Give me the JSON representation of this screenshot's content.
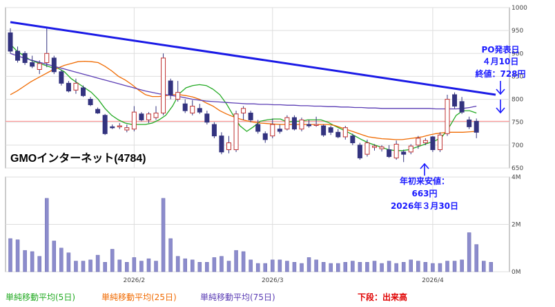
{
  "chart_data": {
    "type": "candlestick",
    "title": "GMOインターネット(4784)",
    "x_ticks": [
      "2026/2",
      "2026/3",
      "2026/4"
    ],
    "price_axis": {
      "ticks": [
        "1000",
        "950",
        "900",
        "850",
        "800",
        "750",
        "700",
        "650"
      ],
      "ylim": [
        650,
        1000
      ]
    },
    "volume_axis": {
      "ticks": [
        "4M",
        "2M",
        "0M"
      ],
      "ylim": [
        0,
        4
      ]
    },
    "series": [
      {
        "name": "単純移動平均(5日)",
        "color": "#22aa22",
        "values": [
          920,
          905,
          895,
          885,
          880,
          875,
          870,
          868,
          860,
          845,
          835,
          825,
          815,
          800,
          780,
          765,
          755,
          748,
          745,
          745,
          745,
          748,
          755,
          765,
          785,
          812,
          825,
          830,
          832,
          830,
          822,
          810,
          790,
          765,
          742,
          730,
          740,
          752,
          755,
          757,
          757,
          750,
          752,
          752,
          755,
          755,
          755,
          750,
          742,
          735,
          728,
          720,
          712,
          705,
          700,
          695,
          690,
          688,
          688,
          690,
          695,
          700,
          705,
          710,
          720,
          740,
          765,
          775,
          775,
          770
        ]
      },
      {
        "name": "単純移動平均(25日)",
        "color": "#f06a00",
        "values": [
          810,
          818,
          828,
          838,
          846,
          854,
          862,
          868,
          874,
          878,
          882,
          883,
          882,
          880,
          872,
          862,
          850,
          842,
          832,
          820,
          810,
          806,
          806,
          808,
          810,
          810,
          808,
          805,
          800,
          792,
          785,
          775,
          768,
          762,
          757,
          753,
          750,
          748,
          747,
          746,
          745,
          745,
          745,
          745,
          745,
          745,
          745,
          745,
          743,
          738,
          733,
          728,
          723,
          718,
          716,
          714,
          713,
          712,
          712,
          714,
          716,
          718,
          722,
          725,
          727,
          728,
          728,
          728,
          729,
          730
        ]
      },
      {
        "name": "単純移動平均(75日)",
        "color": "#5a3cb4",
        "values": [
          900,
          895,
          890,
          886,
          882,
          878,
          874,
          870,
          866,
          862,
          858,
          854,
          850,
          846,
          842,
          838,
          834,
          830,
          826,
          822,
          818,
          815,
          812,
          810,
          808,
          806,
          803,
          800,
          798,
          796,
          795,
          794,
          793,
          792,
          791,
          790,
          790,
          789,
          789,
          788,
          788,
          787,
          787,
          786,
          786,
          785,
          785,
          784,
          784,
          783,
          783,
          782,
          782,
          781,
          781,
          780,
          780,
          780,
          780,
          780,
          780,
          780,
          780,
          779,
          779,
          779,
          779,
          780,
          782,
          785
        ]
      }
    ],
    "candles": [
      {
        "o": 945,
        "h": 955,
        "l": 900,
        "c": 905
      },
      {
        "o": 905,
        "h": 915,
        "l": 880,
        "c": 885
      },
      {
        "o": 900,
        "h": 905,
        "l": 875,
        "c": 880
      },
      {
        "o": 880,
        "h": 895,
        "l": 868,
        "c": 872
      },
      {
        "o": 865,
        "h": 885,
        "l": 855,
        "c": 878
      },
      {
        "o": 880,
        "h": 955,
        "l": 870,
        "c": 900
      },
      {
        "o": 890,
        "h": 895,
        "l": 855,
        "c": 860
      },
      {
        "o": 860,
        "h": 865,
        "l": 830,
        "c": 835
      },
      {
        "o": 835,
        "h": 840,
        "l": 815,
        "c": 818
      },
      {
        "o": 820,
        "h": 845,
        "l": 812,
        "c": 835
      },
      {
        "o": 825,
        "h": 830,
        "l": 805,
        "c": 808
      },
      {
        "o": 800,
        "h": 805,
        "l": 785,
        "c": 788
      },
      {
        "o": 778,
        "h": 782,
        "l": 768,
        "c": 770
      },
      {
        "o": 765,
        "h": 768,
        "l": 722,
        "c": 725
      },
      {
        "o": 740,
        "h": 745,
        "l": 735,
        "c": 738
      },
      {
        "o": 740,
        "h": 748,
        "l": 735,
        "c": 742
      },
      {
        "o": 733,
        "h": 745,
        "l": 728,
        "c": 738
      },
      {
        "o": 735,
        "h": 785,
        "l": 730,
        "c": 772
      },
      {
        "o": 768,
        "h": 772,
        "l": 752,
        "c": 755
      },
      {
        "o": 755,
        "h": 772,
        "l": 748,
        "c": 768
      },
      {
        "o": 760,
        "h": 785,
        "l": 755,
        "c": 770
      },
      {
        "o": 770,
        "h": 900,
        "l": 765,
        "c": 890
      },
      {
        "o": 840,
        "h": 845,
        "l": 800,
        "c": 810
      },
      {
        "o": 800,
        "h": 840,
        "l": 795,
        "c": 815
      },
      {
        "o": 790,
        "h": 800,
        "l": 770,
        "c": 775
      },
      {
        "o": 770,
        "h": 798,
        "l": 765,
        "c": 785
      },
      {
        "o": 780,
        "h": 790,
        "l": 768,
        "c": 772
      },
      {
        "o": 768,
        "h": 775,
        "l": 745,
        "c": 750
      },
      {
        "o": 745,
        "h": 750,
        "l": 715,
        "c": 720
      },
      {
        "o": 720,
        "h": 728,
        "l": 680,
        "c": 685
      },
      {
        "o": 690,
        "h": 720,
        "l": 682,
        "c": 705
      },
      {
        "o": 690,
        "h": 775,
        "l": 685,
        "c": 768
      },
      {
        "o": 770,
        "h": 785,
        "l": 755,
        "c": 780
      },
      {
        "o": 770,
        "h": 775,
        "l": 750,
        "c": 755
      },
      {
        "o": 745,
        "h": 755,
        "l": 725,
        "c": 730
      },
      {
        "o": 725,
        "h": 730,
        "l": 705,
        "c": 712
      },
      {
        "o": 720,
        "h": 758,
        "l": 715,
        "c": 745
      },
      {
        "o": 735,
        "h": 745,
        "l": 725,
        "c": 730
      },
      {
        "o": 735,
        "h": 765,
        "l": 732,
        "c": 760
      },
      {
        "o": 760,
        "h": 765,
        "l": 732,
        "c": 735
      },
      {
        "o": 735,
        "h": 760,
        "l": 730,
        "c": 755
      },
      {
        "o": 745,
        "h": 755,
        "l": 738,
        "c": 742
      },
      {
        "o": 745,
        "h": 762,
        "l": 740,
        "c": 745
      },
      {
        "o": 742,
        "h": 745,
        "l": 718,
        "c": 722
      },
      {
        "o": 738,
        "h": 742,
        "l": 722,
        "c": 728
      },
      {
        "o": 728,
        "h": 735,
        "l": 715,
        "c": 718
      },
      {
        "o": 718,
        "h": 742,
        "l": 712,
        "c": 738
      },
      {
        "o": 720,
        "h": 725,
        "l": 700,
        "c": 705
      },
      {
        "o": 700,
        "h": 705,
        "l": 668,
        "c": 672
      },
      {
        "o": 680,
        "h": 712,
        "l": 675,
        "c": 705
      },
      {
        "o": 695,
        "h": 702,
        "l": 688,
        "c": 698
      },
      {
        "o": 692,
        "h": 700,
        "l": 686,
        "c": 696
      },
      {
        "o": 690,
        "h": 700,
        "l": 672,
        "c": 675
      },
      {
        "o": 672,
        "h": 710,
        "l": 668,
        "c": 702
      },
      {
        "o": 685,
        "h": 690,
        "l": 663,
        "c": 680
      },
      {
        "o": 685,
        "h": 702,
        "l": 680,
        "c": 698
      },
      {
        "o": 700,
        "h": 720,
        "l": 692,
        "c": 715
      },
      {
        "o": 705,
        "h": 715,
        "l": 700,
        "c": 710
      },
      {
        "o": 718,
        "h": 720,
        "l": 685,
        "c": 690
      },
      {
        "o": 690,
        "h": 728,
        "l": 685,
        "c": 722
      },
      {
        "o": 725,
        "h": 810,
        "l": 720,
        "c": 800
      },
      {
        "o": 810,
        "h": 815,
        "l": 780,
        "c": 785
      },
      {
        "o": 795,
        "h": 805,
        "l": 768,
        "c": 772
      },
      {
        "o": 755,
        "h": 762,
        "l": 735,
        "c": 740
      },
      {
        "o": 752,
        "h": 758,
        "l": 715,
        "c": 728
      }
    ],
    "volume": [
      1.4,
      1.35,
      0.9,
      0.85,
      0.65,
      3.1,
      1.3,
      1.0,
      0.8,
      0.45,
      0.45,
      0.5,
      0.7,
      0.4,
      0.95,
      0.5,
      0.4,
      0.6,
      0.45,
      0.55,
      0.45,
      3.1,
      1.4,
      0.65,
      0.55,
      0.5,
      0.4,
      0.4,
      0.6,
      0.65,
      0.45,
      0.9,
      0.85,
      0.5,
      0.35,
      0.35,
      0.5,
      0.5,
      0.45,
      0.4,
      0.35,
      0.6,
      0.5,
      0.4,
      0.35,
      0.35,
      0.4,
      0.45,
      0.4,
      0.4,
      0.45,
      0.35,
      0.45,
      0.35,
      0.4,
      0.5,
      0.45,
      0.4,
      0.35,
      0.35,
      0.45,
      0.45,
      0.5,
      1.65,
      1.15,
      0.45,
      0.4
    ],
    "annotations": {
      "po": [
        "PO発表日",
        "４月10日",
        "終値：728円"
      ],
      "low": [
        "年初来安値：",
        "663円",
        "2026年３月30日"
      ]
    },
    "legend": {
      "ma5": "単純移動平均(5日)",
      "ma25": "単純移動平均(25日)",
      "ma75": "単純移動平均(75日)",
      "volume_note": "下段：出来高"
    },
    "colors": {
      "candle": "#33337f",
      "volume": "#8c8ccc",
      "trendline": "#1a1ae6",
      "annotation": "#1a1aff",
      "reference_line": "#ff8888"
    }
  }
}
